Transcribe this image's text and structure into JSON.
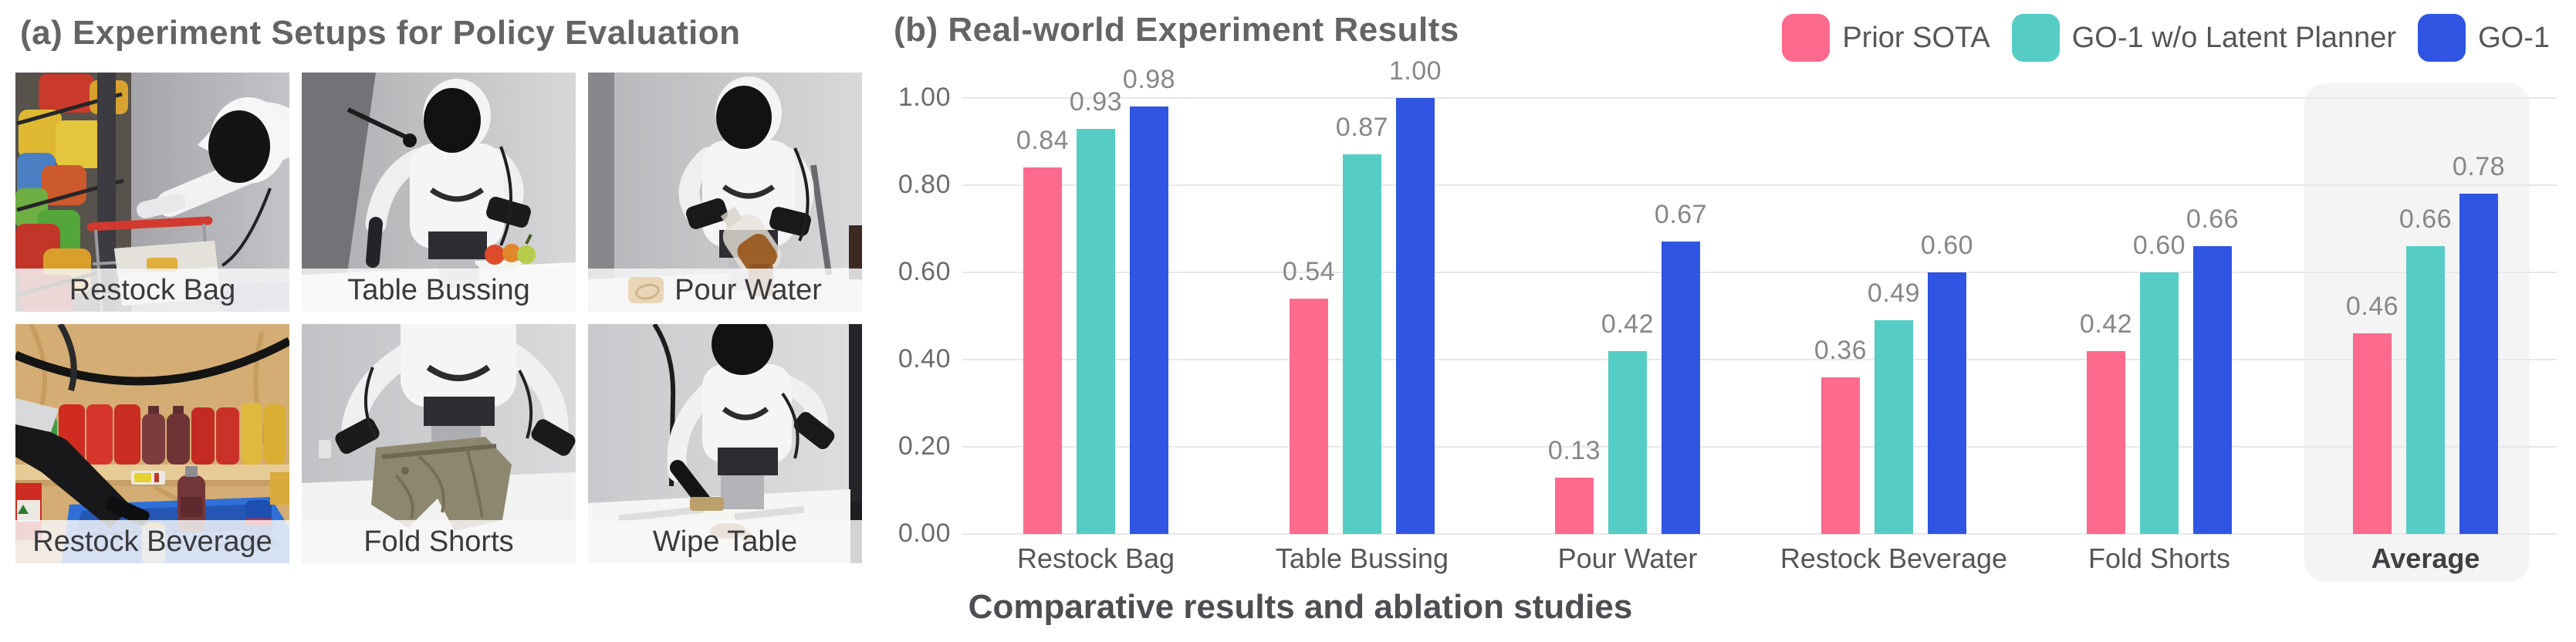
{
  "panel_a": {
    "title": "(a) Experiment Setups for Policy Evaluation",
    "tiles": [
      {
        "label": "Restock Bag"
      },
      {
        "label": "Table Bussing"
      },
      {
        "label": "Pour Water"
      },
      {
        "label": "Restock Beverage"
      },
      {
        "label": "Fold Shorts"
      },
      {
        "label": "Wipe Table"
      }
    ]
  },
  "panel_b": {
    "title": "(b) Real-world Experiment Results",
    "caption": "Comparative results and ablation studies",
    "legend": [
      {
        "label": "Prior SOTA",
        "color": "#FC6A8D"
      },
      {
        "label": "GO-1 w/o Latent Planner",
        "color": "#55CDC5"
      },
      {
        "label": "GO-1",
        "color": "#2F55E2"
      }
    ]
  },
  "chart_data": {
    "type": "bar",
    "title": "(b) Real-world Experiment Results",
    "categories": [
      "Restock Bag",
      "Table Bussing",
      "Pour Water",
      "Restock Beverage",
      "Fold Shorts",
      "Average"
    ],
    "series": [
      {
        "name": "Prior SOTA",
        "color": "#FC6A8D",
        "values": [
          0.84,
          0.54,
          0.13,
          0.36,
          0.42,
          0.46
        ]
      },
      {
        "name": "GO-1 w/o Latent Planner",
        "color": "#55CDC5",
        "values": [
          0.93,
          0.87,
          0.42,
          0.49,
          0.6,
          0.66
        ]
      },
      {
        "name": "GO-1",
        "color": "#2F55E2",
        "values": [
          0.98,
          1.0,
          0.67,
          0.6,
          0.66,
          0.78
        ]
      }
    ],
    "ylim": [
      0,
      1.0
    ],
    "yticks": [
      "1.00",
      "0.80",
      "0.60",
      "0.40",
      "0.20",
      "0.00"
    ],
    "grid": true,
    "legend_position": "top-right",
    "highlight_category": "Average",
    "value_label_format": "2dp",
    "xlabel": "",
    "ylabel": ""
  }
}
